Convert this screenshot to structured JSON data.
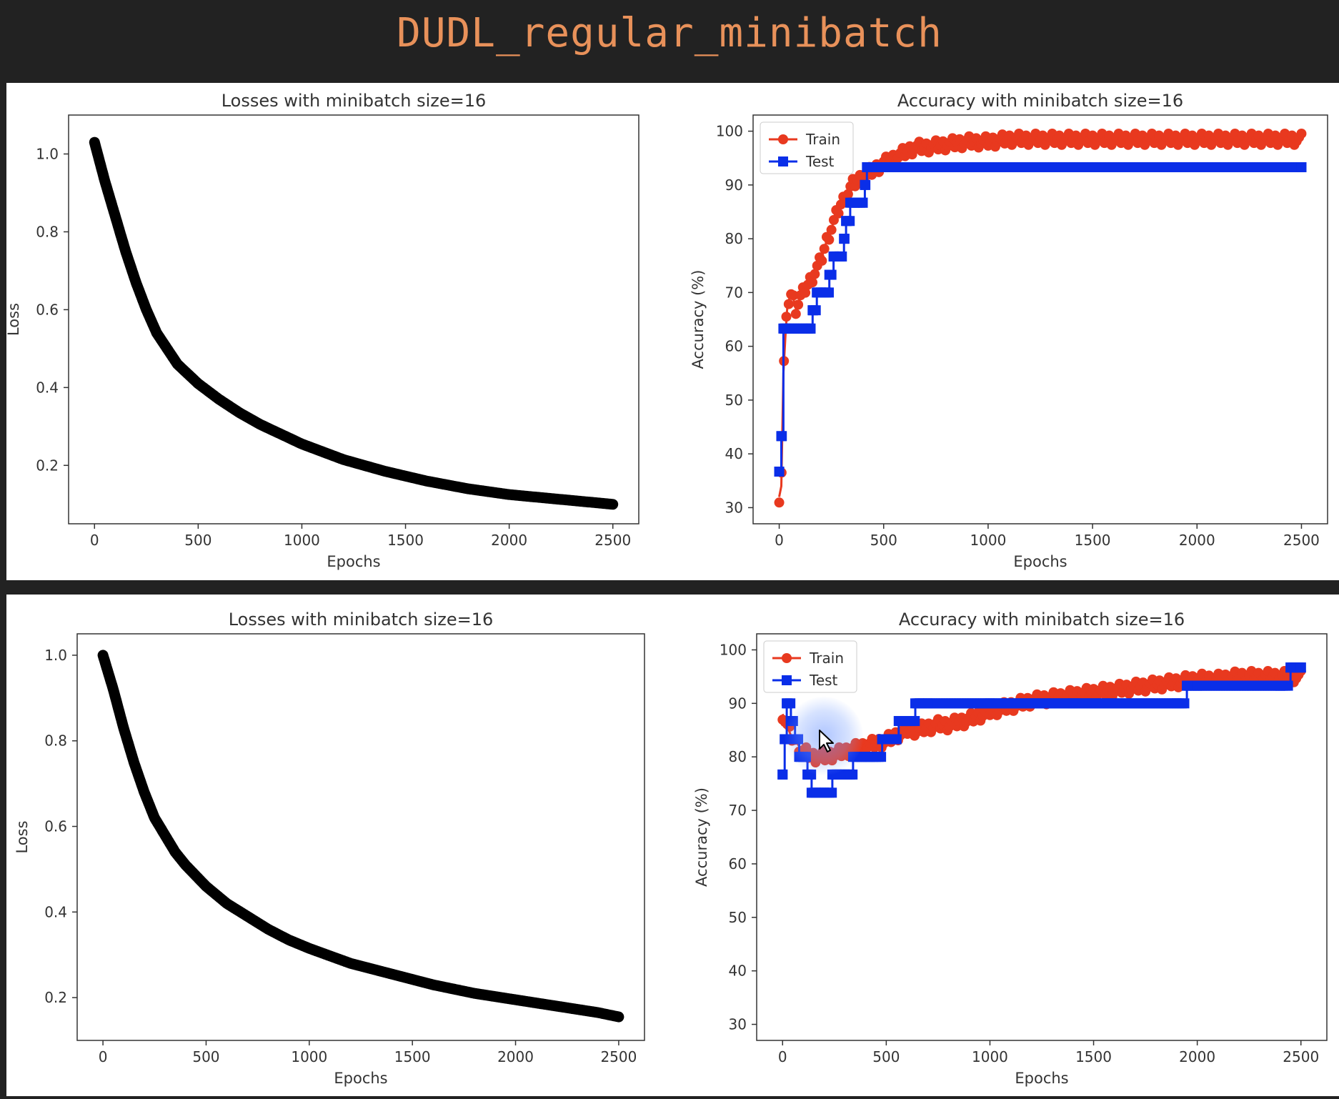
{
  "page_title": "DUDL_regular_minibatch",
  "colors": {
    "loss": "#000000",
    "train": "#e8391f",
    "test": "#0a2ee8",
    "background": "#222222",
    "title": "#e8915a"
  },
  "icons": [
    "mouse-cursor-icon"
  ],
  "chart_data": [
    {
      "type": "line",
      "title": "Losses with minibatch size=16",
      "xlabel": "Epochs",
      "ylabel": "Loss",
      "xlim": [
        -125,
        2625
      ],
      "ylim": [
        0.05,
        1.1
      ],
      "xticks": [
        0,
        500,
        1000,
        1500,
        2000,
        2500
      ],
      "yticks": [
        0.2,
        0.4,
        0.6,
        0.8,
        1.0
      ],
      "ytick_labels": [
        "0.2",
        "0.4",
        "0.6",
        "0.8",
        "1.0"
      ],
      "grid": false,
      "series": [
        {
          "x": [
            0,
            50,
            100,
            150,
            200,
            250,
            300,
            350,
            400,
            500,
            600,
            700,
            800,
            900,
            1000,
            1200,
            1400,
            1600,
            1800,
            2000,
            2200,
            2400,
            2500
          ],
          "y": [
            1.03,
            0.93,
            0.84,
            0.75,
            0.67,
            0.6,
            0.54,
            0.5,
            0.46,
            0.41,
            0.37,
            0.335,
            0.305,
            0.28,
            0.255,
            0.215,
            0.185,
            0.16,
            0.14,
            0.125,
            0.115,
            0.105,
            0.1
          ]
        }
      ]
    },
    {
      "type": "line",
      "title": "Accuracy with minibatch size=16",
      "xlabel": "Epochs",
      "ylabel": "Accuracy (%)",
      "xlim": [
        -125,
        2625
      ],
      "ylim": [
        27,
        103
      ],
      "xticks": [
        0,
        500,
        1000,
        1500,
        2000,
        2500
      ],
      "yticks": [
        30,
        40,
        50,
        60,
        70,
        80,
        90,
        100
      ],
      "legend": "top-left",
      "grid": false,
      "series": [
        {
          "name": "Train",
          "marker": "circle",
          "x": [
            0,
            10,
            20,
            30,
            40,
            60,
            80,
            100,
            130,
            160,
            200,
            230,
            260,
            290,
            320,
            350,
            380,
            420,
            460,
            500,
            550,
            600,
            650,
            700,
            800,
            900,
            1000,
            1100,
            1300,
            1500,
            1700,
            1900,
            2100,
            2300,
            2500
          ],
          "y": [
            32,
            34,
            55,
            62,
            68,
            70,
            67,
            69,
            71,
            73,
            76,
            80,
            83,
            86,
            88,
            90,
            91,
            92,
            93,
            94,
            95,
            96,
            97,
            97,
            97.5,
            98,
            98,
            98.5,
            98.5,
            98.5,
            98.5,
            98.5,
            98.5,
            98.5,
            98.5
          ]
        },
        {
          "name": "Test",
          "x": [
            0,
            10,
            20,
            30,
            150,
            160,
            180,
            200,
            240,
            260,
            290,
            310,
            320,
            340,
            360,
            400,
            410,
            420,
            440,
            2500
          ],
          "y": [
            36.7,
            43.3,
            63.3,
            63.3,
            63.3,
            66.7,
            70,
            70,
            73.3,
            76.7,
            76.7,
            80,
            83.3,
            86.7,
            86.7,
            86.7,
            90,
            93.3,
            93.3,
            93.3
          ],
          "marker": "square",
          "step": true
        }
      ]
    },
    {
      "type": "line",
      "title": "Losses with minibatch size=16",
      "xlabel": "Epochs",
      "ylabel": "Loss",
      "xlim": [
        -125,
        2625
      ],
      "ylim": [
        0.1,
        1.05
      ],
      "xticks": [
        0,
        500,
        1000,
        1500,
        2000,
        2500
      ],
      "yticks": [
        0.2,
        0.4,
        0.6,
        0.8,
        1.0
      ],
      "ytick_labels": [
        "0.2",
        "0.4",
        "0.6",
        "0.8",
        "1.0"
      ],
      "grid": false,
      "series": [
        {
          "x": [
            0,
            50,
            100,
            150,
            200,
            250,
            300,
            350,
            400,
            500,
            600,
            700,
            800,
            900,
            1000,
            1200,
            1400,
            1600,
            1800,
            2000,
            2200,
            2400,
            2500
          ],
          "y": [
            1.0,
            0.92,
            0.83,
            0.75,
            0.68,
            0.62,
            0.58,
            0.54,
            0.51,
            0.46,
            0.42,
            0.39,
            0.36,
            0.335,
            0.315,
            0.28,
            0.255,
            0.23,
            0.21,
            0.195,
            0.18,
            0.165,
            0.155
          ]
        }
      ]
    },
    {
      "type": "line",
      "title": "Accuracy with minibatch size=16",
      "xlabel": "Epochs",
      "ylabel": "Accuracy (%)",
      "xlim": [
        -125,
        2625
      ],
      "ylim": [
        27,
        103
      ],
      "xticks": [
        0,
        500,
        1000,
        1500,
        2000,
        2500
      ],
      "yticks": [
        30,
        40,
        50,
        60,
        70,
        80,
        90,
        100
      ],
      "legend": "top-left",
      "grid": false,
      "series": [
        {
          "name": "Train",
          "marker": "circle",
          "x": [
            0,
            20,
            40,
            60,
            80,
            100,
            150,
            200,
            250,
            300,
            350,
            400,
            450,
            500,
            550,
            600,
            650,
            700,
            750,
            800,
            900,
            1000,
            1100,
            1200,
            1300,
            1400,
            1500,
            1600,
            1700,
            1800,
            1900,
            2000,
            2100,
            2200,
            2300,
            2400,
            2500
          ],
          "y": [
            88,
            86,
            84,
            83,
            82,
            81,
            80,
            80,
            80.5,
            81,
            81.5,
            82,
            82.5,
            83,
            84,
            85,
            85,
            85.5,
            86,
            86,
            87,
            88.5,
            89.5,
            90.5,
            91,
            91.5,
            92,
            92.5,
            93,
            93.5,
            94,
            94.5,
            94.5,
            95,
            95,
            95,
            95
          ]
        },
        {
          "name": "Test",
          "marker": "square",
          "step": true,
          "x": [
            0,
            10,
            20,
            40,
            60,
            80,
            100,
            120,
            140,
            160,
            200,
            240,
            260,
            300,
            340,
            380,
            420,
            480,
            530,
            560,
            580,
            620,
            640,
            660,
            700,
            1000,
            1400,
            1900,
            1950,
            2000,
            2400,
            2450,
            2500
          ],
          "y": [
            76.7,
            83.3,
            90,
            86.7,
            83.3,
            80,
            80,
            76.7,
            73.3,
            73.3,
            73.3,
            76.7,
            76.7,
            76.7,
            80,
            80,
            80,
            83.3,
            83.3,
            86.7,
            86.7,
            86.7,
            90,
            90,
            90,
            90,
            90,
            90,
            93.3,
            93.3,
            93.3,
            96.7,
            96.7
          ]
        }
      ]
    }
  ]
}
